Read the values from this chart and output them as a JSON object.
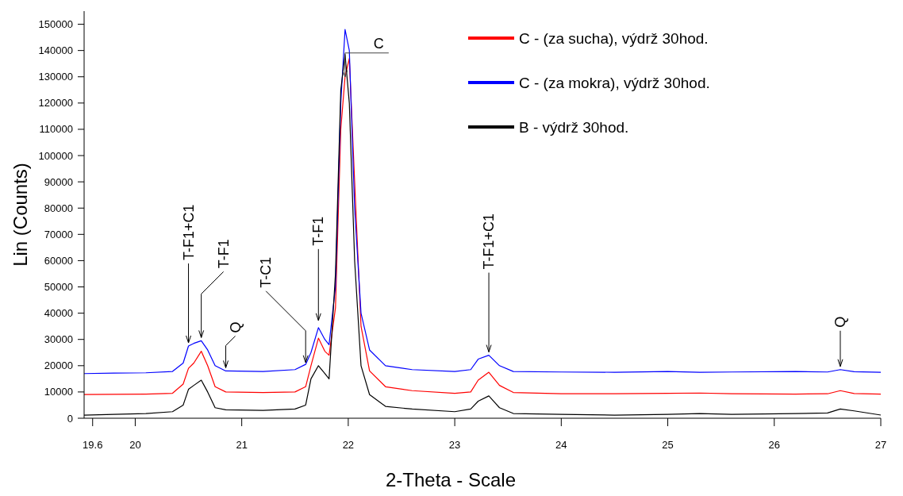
{
  "chart_data": {
    "type": "line",
    "xlabel": "2-Theta - Scale",
    "ylabel": "Lin (Counts)",
    "x": [
      19.52,
      19.8,
      20.1,
      20.35,
      20.45,
      20.5,
      20.55,
      20.62,
      20.68,
      20.75,
      20.85,
      21.2,
      21.5,
      21.6,
      21.65,
      21.72,
      21.78,
      21.82,
      21.88,
      21.93,
      21.97,
      22.01,
      22.06,
      22.12,
      22.2,
      22.35,
      22.6,
      23.0,
      23.15,
      23.22,
      23.32,
      23.42,
      23.55,
      24,
      24.5,
      25,
      25.3,
      25.6,
      26.2,
      26.5,
      26.62,
      26.75,
      27
    ],
    "series": [
      {
        "name": "C - (za  sucha), výdrž 30hod.",
        "color": "#ff0000",
        "values": [
          9000,
          9100,
          9200,
          9500,
          13000,
          19000,
          21000,
          25500,
          20000,
          12000,
          10000,
          9800,
          10000,
          12000,
          20000,
          30500,
          25500,
          24000,
          42000,
          110000,
          130000,
          137000,
          90000,
          35000,
          18000,
          12000,
          10500,
          9500,
          10000,
          14500,
          17500,
          12500,
          9800,
          9300,
          9300,
          9500,
          9600,
          9300,
          9200,
          9300,
          10500,
          9400,
          9200
        ]
      },
      {
        "name": "C - (za  mokra), výdrž 30hod.",
        "color": "#0000ff",
        "values": [
          17000,
          17200,
          17300,
          17800,
          21000,
          27500,
          28500,
          29500,
          26000,
          20000,
          18000,
          17800,
          18500,
          20500,
          25000,
          34500,
          30000,
          28000,
          50000,
          120000,
          148000,
          140000,
          80000,
          40000,
          26000,
          20000,
          18500,
          17800,
          18500,
          22500,
          24000,
          20000,
          17800,
          17600,
          17500,
          17800,
          17500,
          17600,
          17800,
          17600,
          18500,
          17700,
          17500
        ]
      },
      {
        "name": "B - výdrž 30hod.",
        "color": "#000000",
        "values": [
          1200,
          1500,
          1800,
          2500,
          5000,
          11000,
          12500,
          14500,
          10000,
          4000,
          3200,
          3000,
          3500,
          5000,
          15000,
          20000,
          17000,
          15000,
          55000,
          125000,
          138500,
          120000,
          60000,
          20000,
          9000,
          4500,
          3500,
          2500,
          3500,
          6500,
          8500,
          4000,
          1800,
          1500,
          1200,
          1500,
          1800,
          1500,
          1800,
          2000,
          3500,
          2800,
          1200
        ]
      }
    ],
    "xlim": [
      19.52,
      27
    ],
    "xticks": [
      19.6,
      20,
      21,
      22,
      23,
      24,
      25,
      26,
      27
    ],
    "ylim": [
      0,
      155000
    ],
    "yticks": [
      0,
      10000,
      20000,
      30000,
      40000,
      50000,
      60000,
      70000,
      80000,
      90000,
      100000,
      110000,
      120000,
      130000,
      140000,
      150000
    ],
    "annotations": [
      {
        "text": "T-F1+C1",
        "x": 20.5,
        "y": 27500
      },
      {
        "text": "T-F1",
        "x": 20.62,
        "y": 29500
      },
      {
        "text": "Q",
        "x": 20.85,
        "y": 18000
      },
      {
        "text": "T-C1",
        "x": 21.6,
        "y": 20000
      },
      {
        "text": "T-F1",
        "x": 21.72,
        "y": 36000
      },
      {
        "text": "C",
        "x": 21.97,
        "y": 130000
      },
      {
        "text": "T-F1+C1",
        "x": 23.32,
        "y": 24000
      },
      {
        "text": "Q",
        "x": 26.62,
        "y": 18500
      }
    ],
    "grid": false,
    "legend": "top right",
    "marker": "none",
    "line_style": "solid"
  }
}
